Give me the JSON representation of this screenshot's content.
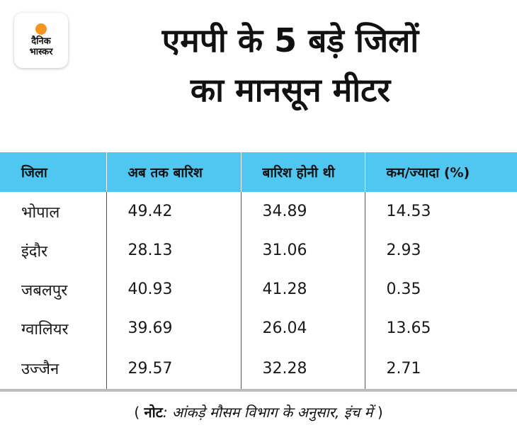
{
  "logo": {
    "line1": "दैनिक",
    "line2": "भास्कर",
    "accent": "#f7941d"
  },
  "title": {
    "line1": "एमपी के 5 बड़े जिलों",
    "line2": "का मानसून मीटर"
  },
  "chart_data": {
    "type": "table",
    "columns": [
      "जिला",
      "अब तक बारिश",
      "बारिश होनी थी",
      "कम/ज्यादा (%)"
    ],
    "rows": [
      {
        "district": "भोपाल",
        "rain_so_far": "49.42",
        "rain_expected": "34.89",
        "diff": "14.53"
      },
      {
        "district": "इंदौर",
        "rain_so_far": "28.13",
        "rain_expected": "31.06",
        "diff": "2.93"
      },
      {
        "district": "जबलपुर",
        "rain_so_far": "40.93",
        "rain_expected": "41.28",
        "diff": "0.35"
      },
      {
        "district": "ग्वालियर",
        "rain_so_far": "39.69",
        "rain_expected": "26.04",
        "diff": "13.65"
      },
      {
        "district": "उज्जैन",
        "rain_so_far": "29.57",
        "rain_expected": "32.28",
        "diff": "2.71"
      }
    ],
    "header_color": "#4fc7f0"
  },
  "note": {
    "open": "( ",
    "label": "नोट",
    "text": ": आंकड़े मौसम विभाग के अनुसार, इंच में",
    "close": " )"
  }
}
